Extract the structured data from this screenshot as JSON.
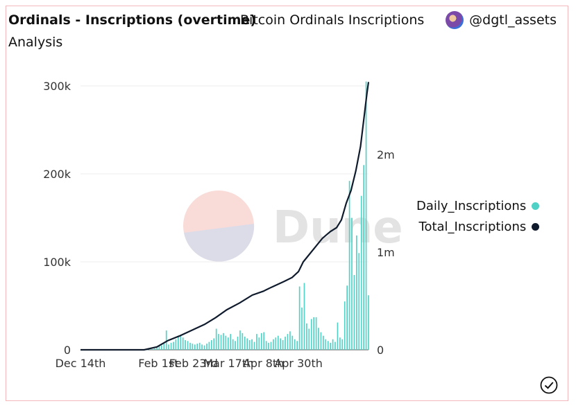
{
  "header": {
    "title": "Ordinals - Inscriptions (overtime)",
    "subtitle_line1": "Bitcoin Ordinals Inscriptions",
    "subtitle_line2": "Analysis",
    "author": "@dgtl_assets"
  },
  "watermark": "Dune",
  "chart_data": {
    "type": "bar",
    "x_tick_labels": [
      "Dec 14th",
      "Feb 1st",
      "Feb 23rd",
      "Mar 17th",
      "Apr 8th",
      "Apr 30th"
    ],
    "y_left": {
      "ticks": [
        "0",
        "100k",
        "200k",
        "300k"
      ],
      "range": [
        0,
        300000
      ]
    },
    "y_right": {
      "ticks": [
        "0",
        "1m",
        "2m"
      ],
      "range": [
        0,
        2700000
      ]
    },
    "colors": {
      "daily": "#4fd1c5",
      "total": "#0f1b2d"
    },
    "series": [
      {
        "name": "Daily_Inscriptions",
        "type": "bar",
        "axis": "left",
        "start_day": 42,
        "values": [
          200,
          400,
          800,
          1500,
          2500,
          4000,
          5000,
          7000,
          22000,
          6000,
          8000,
          9000,
          12000,
          16000,
          17000,
          14000,
          11000,
          10000,
          8000,
          7000,
          6000,
          7000,
          8000,
          6000,
          5000,
          7000,
          9000,
          11000,
          13000,
          24000,
          18000,
          17000,
          19000,
          16000,
          14000,
          18000,
          12000,
          10000,
          15000,
          22000,
          19000,
          15000,
          13000,
          11000,
          12000,
          9000,
          18000,
          14000,
          19000,
          20000,
          10000,
          8000,
          9000,
          12000,
          14000,
          16000,
          13000,
          11000,
          15000,
          18000,
          21000,
          16000,
          12000,
          10000,
          72000,
          48000,
          76000,
          30000,
          24000,
          35000,
          37000,
          37000,
          25000,
          20000,
          16000,
          12000,
          10000,
          8000,
          12000,
          9000,
          31000,
          14000,
          12000,
          55000,
          73000,
          192000,
          150000,
          85000,
          130000,
          110000,
          175000,
          210000,
          305000,
          62000
        ]
      },
      {
        "name": "Total_Inscriptions",
        "type": "line",
        "axis": "right",
        "points": [
          [
            0,
            0
          ],
          [
            40,
            0
          ],
          [
            48,
            30000
          ],
          [
            55,
            95000
          ],
          [
            62,
            140000
          ],
          [
            70,
            200000
          ],
          [
            78,
            260000
          ],
          [
            85,
            330000
          ],
          [
            92,
            410000
          ],
          [
            100,
            480000
          ],
          [
            108,
            560000
          ],
          [
            115,
            600000
          ],
          [
            120,
            640000
          ],
          [
            128,
            700000
          ],
          [
            133,
            740000
          ],
          [
            137,
            800000
          ],
          [
            140,
            900000
          ],
          [
            143,
            960000
          ],
          [
            148,
            1060000
          ],
          [
            152,
            1140000
          ],
          [
            157,
            1210000
          ],
          [
            161,
            1250000
          ],
          [
            164,
            1330000
          ],
          [
            167,
            1500000
          ],
          [
            170,
            1630000
          ],
          [
            173,
            1830000
          ],
          [
            176,
            2080000
          ],
          [
            178,
            2350000
          ],
          [
            180,
            2620000
          ],
          [
            181,
            2740000
          ]
        ]
      }
    ],
    "legend_position": "right",
    "grid": true
  }
}
